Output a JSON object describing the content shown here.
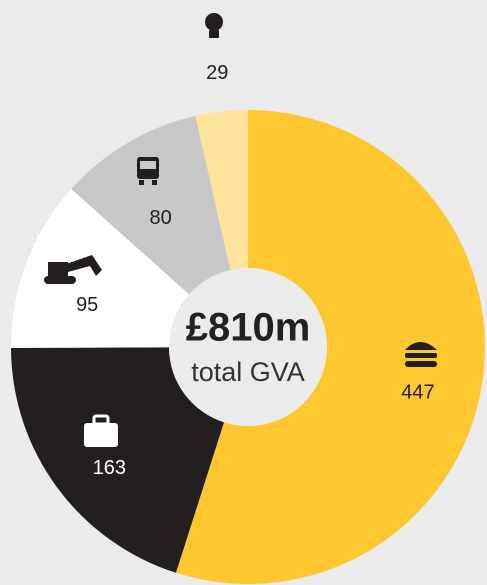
{
  "chart_data": {
    "type": "pie",
    "donut": true,
    "center_title": "£810m",
    "center_subtitle": "total GVA",
    "categories": [
      null,
      null,
      null,
      null,
      null
    ],
    "values": [
      447,
      163,
      95,
      80,
      29
    ],
    "colors": [
      "#fdc82f",
      "#231f20",
      "#ffffff",
      "#c8c8c8",
      "#fde49a"
    ]
  }
}
